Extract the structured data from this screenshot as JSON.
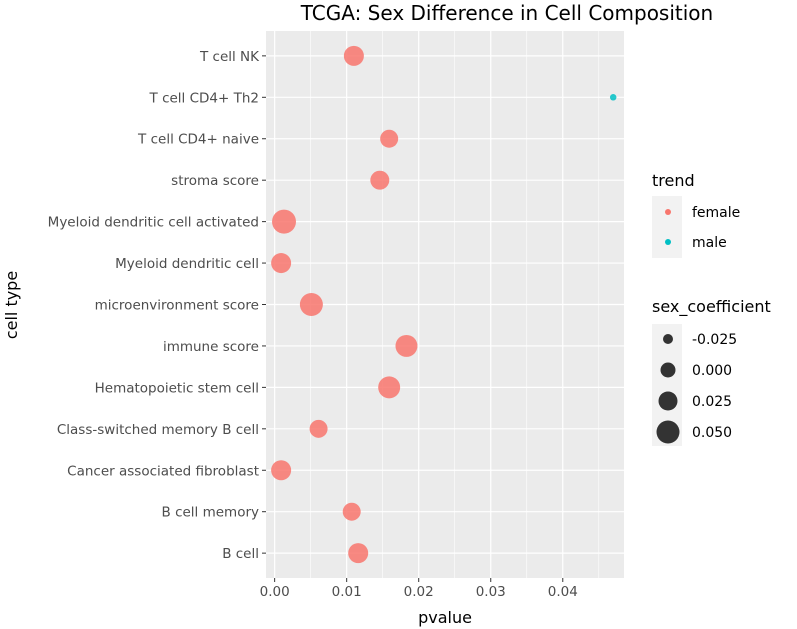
{
  "chart_data": {
    "type": "scatter",
    "title": "TCGA: Sex Difference in Cell Composition",
    "xlabel": "pvalue",
    "ylabel": "cell type",
    "xlim": [
      -0.0012,
      0.0485
    ],
    "xticks": [
      0.0,
      0.01,
      0.02,
      0.03,
      0.04
    ],
    "xtick_labels": [
      "0.00",
      "0.01",
      "0.02",
      "0.03",
      "0.04"
    ],
    "grid": true,
    "categories": [
      "T cell NK",
      "T cell CD4+ Th2",
      "T cell CD4+ naive",
      "stroma score",
      "Myeloid dendritic cell activated",
      "Myeloid dendritic cell",
      "microenvironment score",
      "immune score",
      "Hematopoietic stem cell",
      "Class-switched memory B cell",
      "Cancer associated fibroblast",
      "B cell memory",
      "B cell"
    ],
    "points": [
      {
        "cell_type": "T cell NK",
        "pvalue": 0.011,
        "trend": "female",
        "sex_coefficient": 0.04
      },
      {
        "cell_type": "T cell CD4+ Th2",
        "pvalue": 0.047,
        "trend": "male",
        "sex_coefficient": -0.03
      },
      {
        "cell_type": "T cell CD4+ naive",
        "pvalue": 0.0159,
        "trend": "female",
        "sex_coefficient": 0.025
      },
      {
        "cell_type": "stroma score",
        "pvalue": 0.0146,
        "trend": "female",
        "sex_coefficient": 0.032
      },
      {
        "cell_type": "Myeloid dendritic cell activated",
        "pvalue": 0.0013,
        "trend": "female",
        "sex_coefficient": 0.074
      },
      {
        "cell_type": "Myeloid dendritic cell",
        "pvalue": 0.0009,
        "trend": "female",
        "sex_coefficient": 0.04
      },
      {
        "cell_type": "microenvironment score",
        "pvalue": 0.0051,
        "trend": "female",
        "sex_coefficient": 0.065
      },
      {
        "cell_type": "immune score",
        "pvalue": 0.0183,
        "trend": "female",
        "sex_coefficient": 0.056
      },
      {
        "cell_type": "Hematopoietic stem cell",
        "pvalue": 0.0159,
        "trend": "female",
        "sex_coefficient": 0.056
      },
      {
        "cell_type": "Class-switched memory B cell",
        "pvalue": 0.0061,
        "trend": "female",
        "sex_coefficient": 0.025
      },
      {
        "cell_type": "Cancer associated fibroblast",
        "pvalue": 0.0009,
        "trend": "female",
        "sex_coefficient": 0.04
      },
      {
        "cell_type": "B cell memory",
        "pvalue": 0.0107,
        "trend": "female",
        "sex_coefficient": 0.025
      },
      {
        "cell_type": "B cell",
        "pvalue": 0.0116,
        "trend": "female",
        "sex_coefficient": 0.04
      }
    ],
    "legend": {
      "position": "right",
      "color_title": "trend",
      "color_entries": [
        {
          "label": "female",
          "color": "#F8766D"
        },
        {
          "label": "male",
          "color": "#00BFC4"
        }
      ],
      "size_title": "sex_coefficient",
      "size_entries": [
        {
          "label": "-0.025",
          "value": -0.025
        },
        {
          "label": "0.000",
          "value": 0.0
        },
        {
          "label": "0.025",
          "value": 0.025
        },
        {
          "label": "0.050",
          "value": 0.05
        }
      ]
    }
  }
}
